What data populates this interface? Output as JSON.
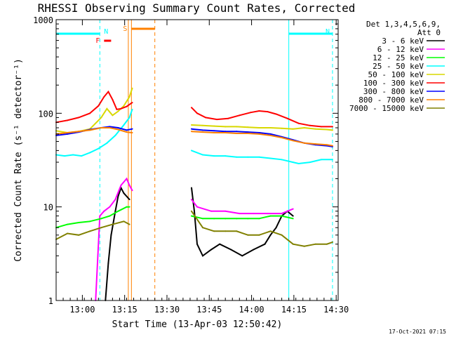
{
  "chart_data": {
    "type": "line",
    "title": "RHESSI Observing Summary Count Rates, Corrected",
    "xlabel": "Start Time (13-Apr-03 12:50:42)",
    "ylabel": "Corrected Count Rate (s⁻¹ detector⁻¹)",
    "x_unit": "minutes after 12:50:42",
    "xlim": [
      0,
      100
    ],
    "ylim": [
      1,
      1000
    ],
    "y_scale": "log",
    "grid": false,
    "legend_position": "right",
    "x_ticks": [
      {
        "value": 9.3,
        "label": "13:00"
      },
      {
        "value": 24.3,
        "label": "13:15"
      },
      {
        "value": 39.3,
        "label": "13:30"
      },
      {
        "value": 54.3,
        "label": "13:45"
      },
      {
        "value": 69.3,
        "label": "14:00"
      },
      {
        "value": 84.3,
        "label": "14:15"
      },
      {
        "value": 99.3,
        "label": "14:30"
      }
    ],
    "y_ticks": [
      {
        "value": 1,
        "label": "1"
      },
      {
        "value": 10,
        "label": "10"
      },
      {
        "value": 100,
        "label": "100"
      },
      {
        "value": 1000,
        "label": "1000"
      }
    ],
    "legend_header": [
      "Det 1,3,4,5,6,9,",
      "Att 0"
    ],
    "series": [
      {
        "name": "3 - 6 keV",
        "color": "#000000",
        "points": [
          [
            17.5,
            1
          ],
          [
            18.5,
            2.5
          ],
          [
            19.5,
            5
          ],
          [
            21,
            9
          ],
          [
            22,
            13
          ],
          [
            23,
            16
          ],
          [
            24,
            14
          ],
          [
            26,
            12
          ],
          [
            32,
            0
          ],
          [
            48,
            16
          ],
          [
            49,
            9
          ],
          [
            50,
            4
          ],
          [
            52,
            3
          ],
          [
            55,
            3.5
          ],
          [
            58,
            4
          ],
          [
            62,
            3.5
          ],
          [
            66,
            3
          ],
          [
            70,
            3.5
          ],
          [
            74,
            4
          ],
          [
            76,
            5
          ],
          [
            78,
            6
          ],
          [
            80,
            8
          ],
          [
            82,
            9
          ],
          [
            84,
            8
          ]
        ]
      },
      {
        "name": "6 - 12 keV",
        "color": "#ff00ff",
        "points": [
          [
            14,
            1
          ],
          [
            15.5,
            8
          ],
          [
            17,
            9
          ],
          [
            19,
            10
          ],
          [
            21,
            12
          ],
          [
            23,
            17
          ],
          [
            25,
            20
          ],
          [
            26,
            17
          ],
          [
            27,
            15
          ],
          [
            32,
            0
          ],
          [
            48,
            12
          ],
          [
            50,
            10
          ],
          [
            55,
            9
          ],
          [
            60,
            9
          ],
          [
            65,
            8.5
          ],
          [
            70,
            8.5
          ],
          [
            75,
            8.5
          ],
          [
            80,
            8.5
          ],
          [
            82,
            9
          ],
          [
            84,
            9.5
          ]
        ]
      },
      {
        "name": "12 - 25 keV",
        "color": "#00ff00",
        "points": [
          [
            0,
            6
          ],
          [
            4,
            6.5
          ],
          [
            8,
            6.8
          ],
          [
            12,
            7
          ],
          [
            16,
            7.5
          ],
          [
            19,
            8
          ],
          [
            22,
            9
          ],
          [
            25,
            10
          ],
          [
            26,
            10
          ],
          [
            32,
            0
          ],
          [
            48,
            8
          ],
          [
            52,
            7.5
          ],
          [
            56,
            7.5
          ],
          [
            60,
            7.5
          ],
          [
            64,
            7.5
          ],
          [
            68,
            7.5
          ],
          [
            72,
            7.5
          ],
          [
            76,
            8
          ],
          [
            80,
            8
          ],
          [
            84,
            7.5
          ]
        ]
      },
      {
        "name": "25 - 50 keV",
        "color": "#00ffff",
        "points": [
          [
            0,
            36
          ],
          [
            3,
            35
          ],
          [
            6,
            36
          ],
          [
            9,
            35
          ],
          [
            12,
            38
          ],
          [
            15,
            42
          ],
          [
            18,
            48
          ],
          [
            21,
            58
          ],
          [
            24,
            75
          ],
          [
            26,
            90
          ],
          [
            27,
            110
          ],
          [
            32,
            0
          ],
          [
            48,
            40
          ],
          [
            52,
            36
          ],
          [
            56,
            35
          ],
          [
            60,
            35
          ],
          [
            64,
            34
          ],
          [
            68,
            34
          ],
          [
            72,
            34
          ],
          [
            76,
            33
          ],
          [
            80,
            32
          ],
          [
            84,
            30
          ],
          [
            86,
            29
          ],
          [
            90,
            30
          ],
          [
            94,
            32
          ],
          [
            98,
            32
          ]
        ]
      },
      {
        "name": "50 - 100 keV",
        "color": "#d8d800",
        "points": [
          [
            0,
            65
          ],
          [
            4,
            62
          ],
          [
            8,
            64
          ],
          [
            12,
            68
          ],
          [
            16,
            90
          ],
          [
            18,
            112
          ],
          [
            20,
            95
          ],
          [
            22,
            105
          ],
          [
            24,
            120
          ],
          [
            26,
            150
          ],
          [
            27,
            185
          ],
          [
            32,
            0
          ],
          [
            48,
            75
          ],
          [
            52,
            74
          ],
          [
            56,
            73
          ],
          [
            60,
            72
          ],
          [
            64,
            72
          ],
          [
            68,
            71
          ],
          [
            72,
            70
          ],
          [
            76,
            70
          ],
          [
            80,
            69
          ],
          [
            84,
            68
          ],
          [
            88,
            70
          ],
          [
            92,
            68
          ],
          [
            96,
            67
          ],
          [
            98,
            66
          ]
        ]
      },
      {
        "name": "100 - 300 keV",
        "color": "#ff0000",
        "points": [
          [
            0,
            80
          ],
          [
            4,
            84
          ],
          [
            8,
            90
          ],
          [
            12,
            100
          ],
          [
            15,
            120
          ],
          [
            17,
            150
          ],
          [
            18.5,
            170
          ],
          [
            20,
            140
          ],
          [
            21.5,
            110
          ],
          [
            23,
            112
          ],
          [
            25,
            118
          ],
          [
            27,
            130
          ],
          [
            32,
            0
          ],
          [
            48,
            115
          ],
          [
            50,
            100
          ],
          [
            53,
            90
          ],
          [
            57,
            86
          ],
          [
            61,
            88
          ],
          [
            65,
            95
          ],
          [
            69,
            102
          ],
          [
            72,
            106
          ],
          [
            75,
            104
          ],
          [
            78,
            98
          ],
          [
            82,
            88
          ],
          [
            86,
            78
          ],
          [
            90,
            74
          ],
          [
            94,
            72
          ],
          [
            98,
            72
          ]
        ]
      },
      {
        "name": "300 - 800 keV",
        "color": "#0000ff",
        "points": [
          [
            0,
            58
          ],
          [
            4,
            60
          ],
          [
            8,
            63
          ],
          [
            12,
            67
          ],
          [
            16,
            70
          ],
          [
            19,
            72
          ],
          [
            22,
            70
          ],
          [
            25,
            66
          ],
          [
            27,
            68
          ],
          [
            32,
            0
          ],
          [
            48,
            68
          ],
          [
            52,
            66
          ],
          [
            56,
            65
          ],
          [
            60,
            64
          ],
          [
            64,
            64
          ],
          [
            68,
            63
          ],
          [
            72,
            62
          ],
          [
            76,
            60
          ],
          [
            80,
            56
          ],
          [
            84,
            52
          ],
          [
            88,
            48
          ],
          [
            92,
            46
          ],
          [
            96,
            45
          ],
          [
            98,
            44
          ]
        ]
      },
      {
        "name": "800 - 7000 keV",
        "color": "#ff8000",
        "points": [
          [
            0,
            60
          ],
          [
            4,
            62
          ],
          [
            8,
            64
          ],
          [
            12,
            66
          ],
          [
            16,
            70
          ],
          [
            19,
            70
          ],
          [
            22,
            67
          ],
          [
            25,
            63
          ],
          [
            27,
            62
          ],
          [
            32,
            0
          ],
          [
            48,
            64
          ],
          [
            52,
            63
          ],
          [
            56,
            62
          ],
          [
            60,
            62
          ],
          [
            64,
            61
          ],
          [
            68,
            61
          ],
          [
            72,
            60
          ],
          [
            76,
            58
          ],
          [
            80,
            55
          ],
          [
            84,
            51
          ],
          [
            88,
            48
          ],
          [
            92,
            47
          ],
          [
            96,
            46
          ],
          [
            98,
            45
          ]
        ]
      },
      {
        "name": "7000 - 15000 keV",
        "color": "#808000",
        "points": [
          [
            0,
            4.5
          ],
          [
            4,
            5.2
          ],
          [
            8,
            5
          ],
          [
            12,
            5.5
          ],
          [
            16,
            6
          ],
          [
            20,
            6.5
          ],
          [
            24,
            7
          ],
          [
            26,
            6.5
          ],
          [
            32,
            0
          ],
          [
            48,
            9
          ],
          [
            52,
            6
          ],
          [
            56,
            5.5
          ],
          [
            60,
            5.5
          ],
          [
            64,
            5.5
          ],
          [
            68,
            5
          ],
          [
            72,
            5
          ],
          [
            76,
            5.5
          ],
          [
            80,
            5
          ],
          [
            84,
            4
          ],
          [
            88,
            3.8
          ],
          [
            92,
            4
          ],
          [
            96,
            4
          ],
          [
            98,
            4.2
          ]
        ]
      }
    ],
    "annotations": [
      {
        "type": "flag",
        "label": "N",
        "color": "#00ffff",
        "x_start": 0,
        "x_end": 15.5
      },
      {
        "type": "flag",
        "label": "N",
        "color": "#00ffff",
        "x_start": 82.5,
        "x_end": 98
      },
      {
        "type": "flag",
        "label": "F",
        "color": "#ff0000",
        "x_start": 17,
        "x_end": 19.5
      },
      {
        "type": "flag",
        "label": "S",
        "color": "#ff8000",
        "x_start": 26.7,
        "x_end": 35
      }
    ],
    "vertical_markers": [
      {
        "x": 15.5,
        "color": "#00ffff",
        "style": "dashed"
      },
      {
        "x": 25.6,
        "color": "#ff8000",
        "style": "solid"
      },
      {
        "x": 26.7,
        "color": "#ff8000",
        "style": "solid"
      },
      {
        "x": 35.0,
        "color": "#ff8000",
        "style": "dashed"
      },
      {
        "x": 82.5,
        "color": "#00ffff",
        "style": "solid"
      },
      {
        "x": 98.0,
        "color": "#00ffff",
        "style": "dashed"
      }
    ]
  },
  "footer_timestamp": "17-Oct-2021 07:15"
}
